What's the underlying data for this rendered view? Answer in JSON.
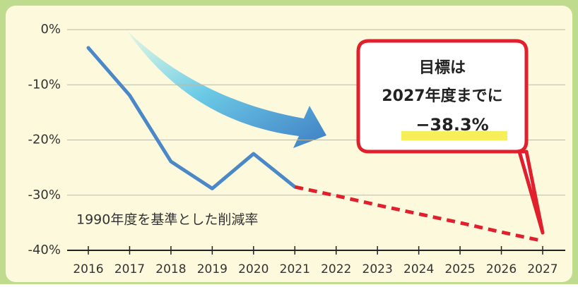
{
  "chart_data": {
    "type": "line",
    "categories": [
      "2016",
      "2017",
      "2018",
      "2019",
      "2020",
      "2021",
      "2022",
      "2023",
      "2024",
      "2025",
      "2026",
      "2027"
    ],
    "series": [
      {
        "color": "#4a88c8",
        "style": "solid",
        "values": [
          -3.3,
          -11.9,
          -23.9,
          -28.8,
          -22.5,
          -28.5,
          null,
          null,
          null,
          null,
          null,
          null
        ]
      },
      {
        "color": "#e0202c",
        "style": "dashed",
        "values": [
          null,
          null,
          null,
          null,
          null,
          -28.5,
          -30.1,
          -31.8,
          -33.4,
          -35.0,
          -36.7,
          -38.3
        ]
      }
    ],
    "ylim": [
      -40,
      0
    ],
    "yticks": [
      {
        "value": 0,
        "label": "0%"
      },
      {
        "value": -10,
        "label": "-10%"
      },
      {
        "value": -20,
        "label": "-20%"
      },
      {
        "value": -30,
        "label": "-30%"
      },
      {
        "value": -40,
        "label": "-40%"
      }
    ],
    "grid": true,
    "annotation": "1990年度を基準とした削減率",
    "callout": [
      "目標は",
      "2027年度までに",
      "−38.3%"
    ]
  }
}
